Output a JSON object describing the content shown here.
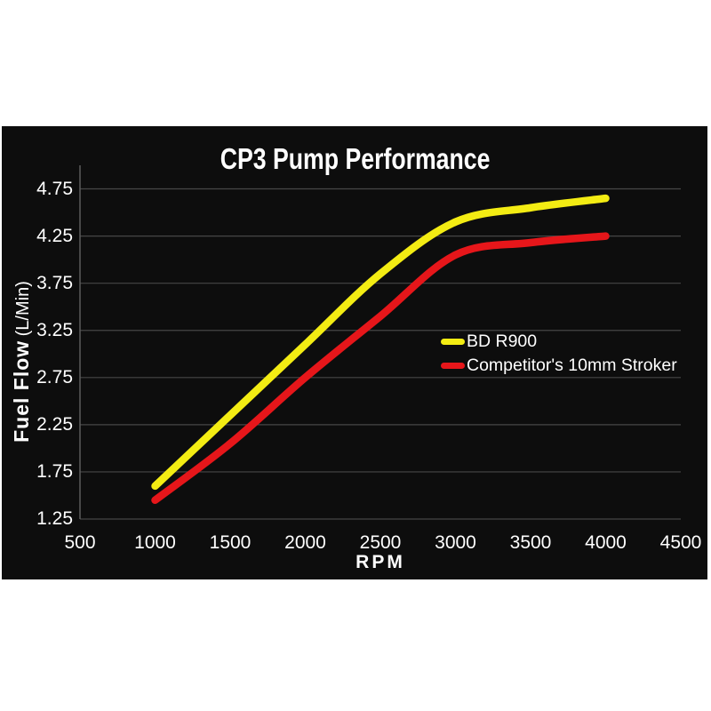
{
  "page": {
    "background_color": "#ffffff"
  },
  "panel": {
    "background_color": "#0d0d0d"
  },
  "chart_data": {
    "type": "line",
    "title": "CP3 Pump Performance",
    "xlabel": "RPM",
    "ylabel": "Fuel Flow (L/Min)",
    "ylabel_parts": {
      "bold": "Fuel Flow",
      "units": "(L/Min)"
    },
    "xlim": [
      500,
      4500
    ],
    "ylim": [
      1.25,
      5.0
    ],
    "x_ticks": [
      "500",
      "1000",
      "1500",
      "2000",
      "2500",
      "3000",
      "3500",
      "4000",
      "4500"
    ],
    "y_ticks": [
      "1.25",
      "1.75",
      "2.25",
      "2.75",
      "3.25",
      "3.75",
      "4.25",
      "4.75"
    ],
    "grid": "horizontal-major-only",
    "legend_position": "inside-right",
    "x": [
      1000,
      1500,
      2000,
      2500,
      3000,
      3500,
      4000
    ],
    "series": [
      {
        "name": "BD R900",
        "color": "#f3ec13",
        "values": [
          1.6,
          2.35,
          3.1,
          3.85,
          4.4,
          4.55,
          4.65
        ]
      },
      {
        "name": "Competitor's 10mm Stroker",
        "color": "#e6161a",
        "values": [
          1.45,
          2.05,
          2.75,
          3.4,
          4.05,
          4.18,
          4.25
        ]
      }
    ],
    "line_style": "smooth",
    "axis_color": "#5c5c5c",
    "gridline_color": "#464646",
    "tick_label_color": "#ffffff"
  }
}
